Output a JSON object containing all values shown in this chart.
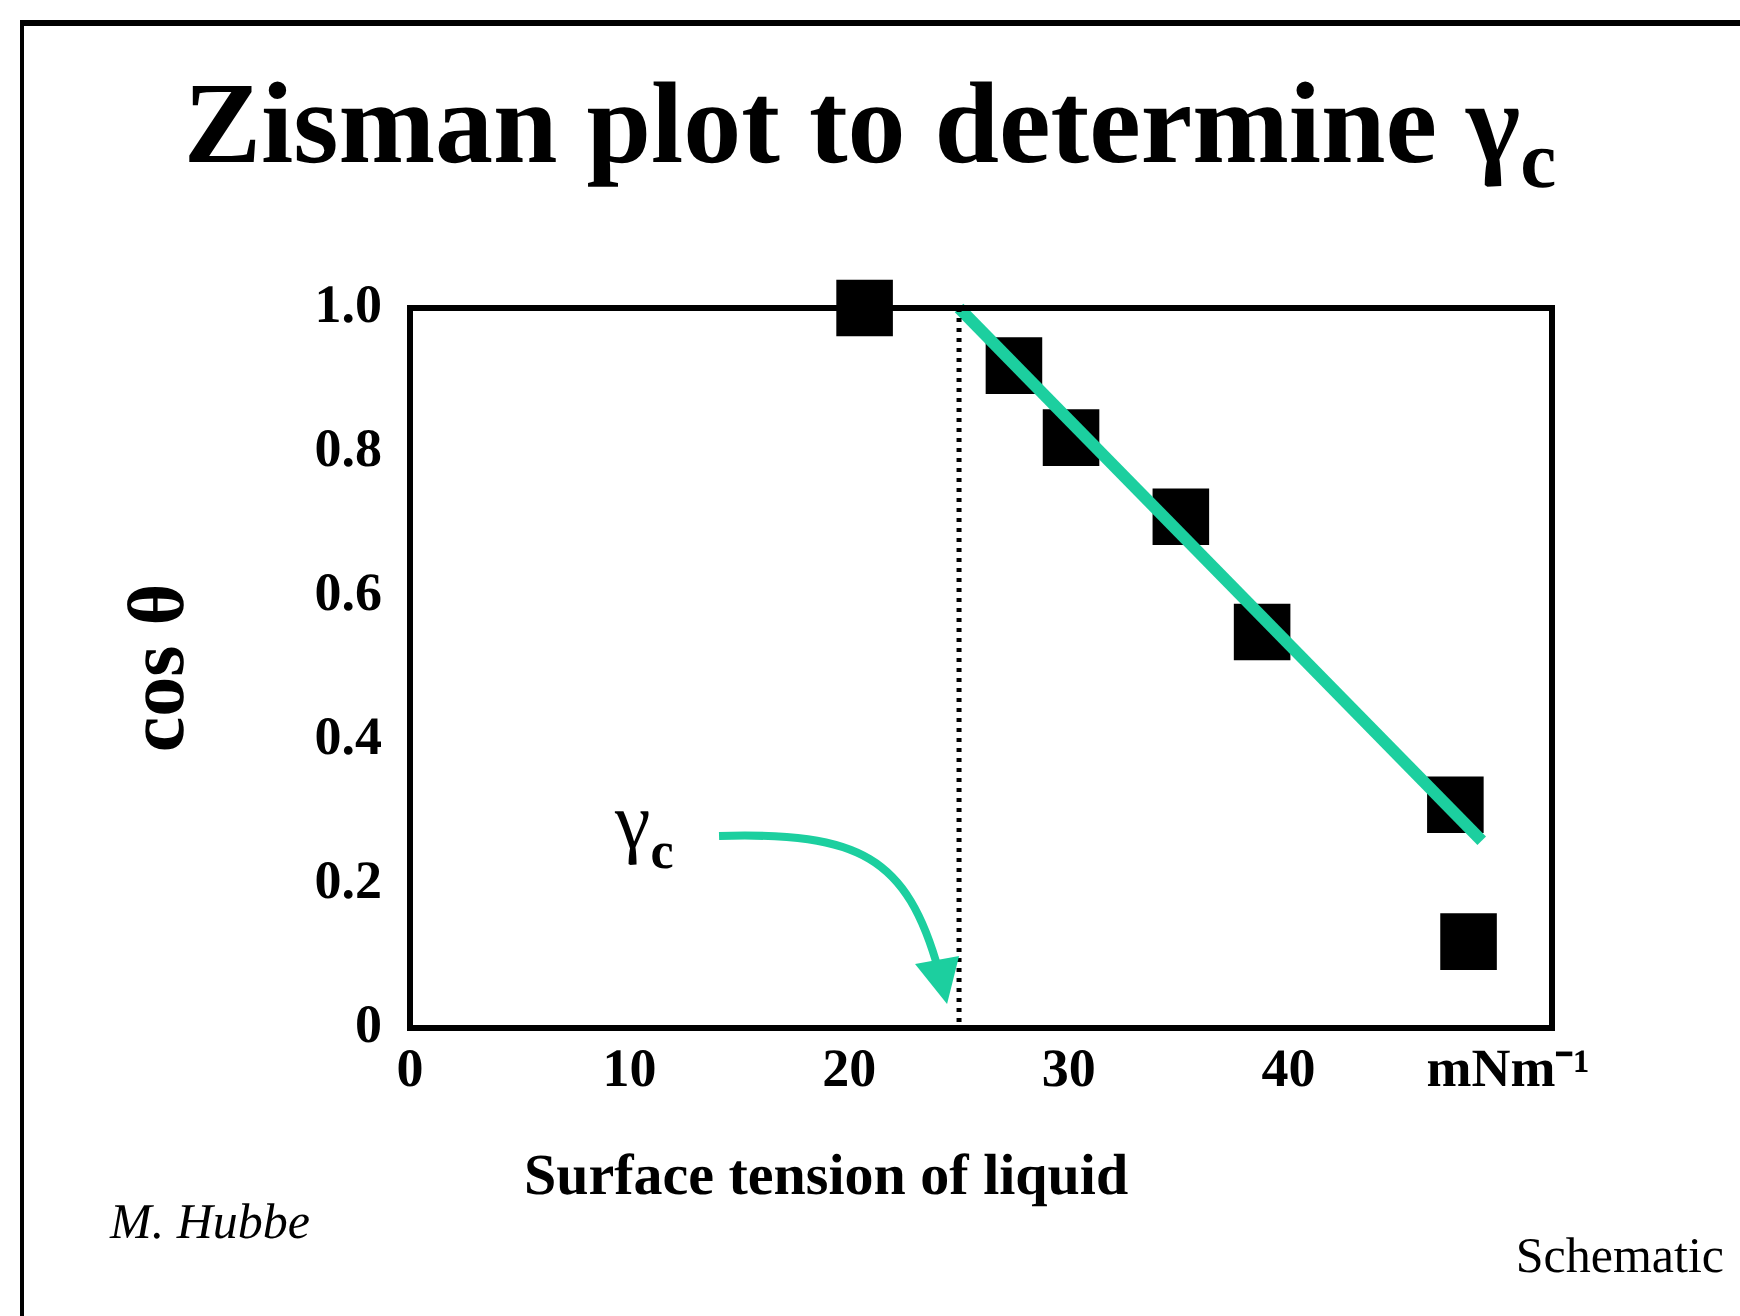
{
  "chart_data": {
    "type": "scatter",
    "title": "Zisman plot to determine γ$_{c}$",
    "xlabel": "Surface tension of liquid",
    "ylabel": "cos θ",
    "xlim": [
      0,
      52
    ],
    "xticks": [
      0,
      10,
      20,
      30,
      40,
      {
        "value": 50,
        "label": "mNm⁻¹"
      }
    ],
    "ylim": [
      0,
      1
    ],
    "yticks": [
      0,
      0.2,
      0.4,
      0.6,
      0.8,
      {
        "value": 1,
        "label": "1.0"
      }
    ],
    "grid": false,
    "legend": false,
    "marker": "square",
    "series": [
      {
        "color": "#000000",
        "x": [
          20.7,
          27.5,
          30.1,
          35.1,
          38.8,
          47.6,
          48.2
        ],
        "values": [
          1.0,
          0.92,
          0.82,
          0.71,
          0.55,
          0.31,
          0.12
        ]
      },
      {
        "type": "line",
        "color": "#1ccf9f",
        "marker": "none",
        "x": [
          25,
          48.8
        ],
        "values": [
          1.0,
          0.26
        ]
      }
    ],
    "ref_lines": [
      {
        "axis": "x",
        "value": 25,
        "label": "γ$_{c}$",
        "color": "#000000",
        "line_style": "dotted"
      }
    ],
    "annotations": [
      "M. Hubbe",
      "Schematic"
    ]
  }
}
